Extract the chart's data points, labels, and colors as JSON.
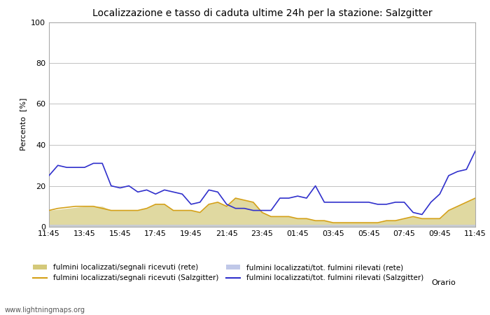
{
  "title": "Localizzazione e tasso di caduta ultime 24h per la stazione: Salzgitter",
  "xlabel": "Orario",
  "ylabel": "Percento  [%]",
  "ylim": [
    0,
    100
  ],
  "yticks": [
    0,
    20,
    40,
    60,
    80,
    100
  ],
  "xtick_labels": [
    "11:45",
    "13:45",
    "15:45",
    "17:45",
    "19:45",
    "21:45",
    "23:45",
    "01:45",
    "03:45",
    "05:45",
    "07:45",
    "09:45",
    "11:45"
  ],
  "watermark": "www.lightningmaps.org",
  "color_fill_rete": "#d4c97a",
  "color_fill_salzgitter": "#c0c8e8",
  "color_line_salzgitter_segnali": "#d4a017",
  "color_line_salzgitter_tot": "#3030cc",
  "x": [
    0,
    1,
    2,
    3,
    4,
    5,
    6,
    7,
    8,
    9,
    10,
    11,
    12,
    13,
    14,
    15,
    16,
    17,
    18,
    19,
    20,
    21,
    22,
    23,
    24,
    25,
    26,
    27,
    28,
    29,
    30,
    31,
    32,
    33,
    34,
    35,
    36,
    37,
    38,
    39,
    40,
    41,
    42,
    43,
    44,
    45,
    46,
    47,
    48
  ],
  "rete_segnali": [
    8,
    8.5,
    9,
    9.5,
    10,
    10,
    10,
    8,
    8,
    8,
    8,
    9,
    11,
    11,
    8,
    8,
    8,
    7,
    11,
    12,
    10,
    14,
    13,
    12,
    7,
    5,
    5,
    5,
    4,
    4,
    3,
    3,
    2,
    2,
    2,
    2,
    2,
    2,
    3,
    3,
    4,
    5,
    4,
    4,
    4,
    8,
    10,
    12,
    14
  ],
  "rete_tot": [
    1,
    1,
    1,
    1,
    1,
    1,
    1,
    1,
    1,
    1,
    1,
    1,
    1,
    1,
    1,
    1,
    1,
    1,
    1,
    1,
    1,
    1,
    1,
    1,
    1,
    1,
    1,
    1,
    1,
    1,
    1,
    1,
    1,
    1,
    1,
    1,
    1,
    1,
    1,
    1,
    1,
    1,
    1,
    1,
    1,
    1,
    1,
    1,
    1
  ],
  "salzgitter_segnali": [
    8,
    9,
    9.5,
    10,
    10,
    10,
    9,
    8,
    8,
    8,
    8,
    9,
    11,
    11,
    8,
    8,
    8,
    7,
    11,
    12,
    10,
    14,
    13,
    12,
    7,
    5,
    5,
    5,
    4,
    4,
    3,
    3,
    2,
    2,
    2,
    2,
    2,
    2,
    3,
    3,
    4,
    5,
    4,
    4,
    4,
    8,
    10,
    12,
    14
  ],
  "salzgitter_tot": [
    25,
    30,
    29,
    29,
    29,
    31,
    31,
    20,
    19,
    20,
    17,
    18,
    16,
    18,
    17,
    16,
    11,
    12,
    18,
    17,
    11,
    9,
    9,
    8,
    8,
    8,
    14,
    14,
    15,
    14,
    20,
    12,
    12,
    12,
    12,
    12,
    12,
    11,
    11,
    12,
    12,
    7,
    6,
    12,
    16,
    25,
    27,
    28,
    37
  ]
}
